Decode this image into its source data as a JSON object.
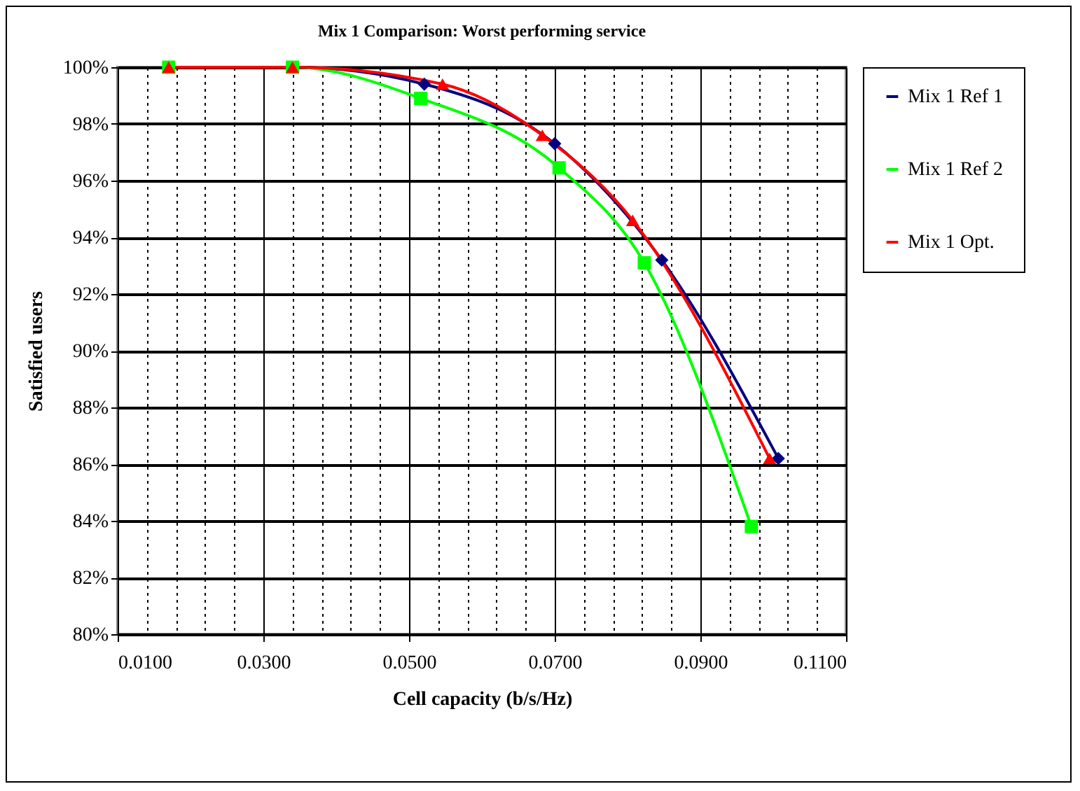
{
  "chart_data": {
    "type": "line",
    "title": "Mix 1 Comparison: Worst performing service",
    "xlabel": "Cell capacity (b/s/Hz)",
    "ylabel": "Satisfied users",
    "xlim": [
      0.01,
      0.11
    ],
    "ylim": [
      80,
      100
    ],
    "xticks": [
      {
        "value": 0.01,
        "label": "0.0100"
      },
      {
        "value": 0.014,
        "label": null
      },
      {
        "value": 0.018,
        "label": null
      },
      {
        "value": 0.022,
        "label": null
      },
      {
        "value": 0.026,
        "label": null
      },
      {
        "value": 0.03,
        "label": "0.0300"
      },
      {
        "value": 0.034,
        "label": null
      },
      {
        "value": 0.038,
        "label": null
      },
      {
        "value": 0.042,
        "label": null
      },
      {
        "value": 0.046,
        "label": null
      },
      {
        "value": 0.05,
        "label": "0.0500"
      },
      {
        "value": 0.054,
        "label": null
      },
      {
        "value": 0.058,
        "label": null
      },
      {
        "value": 0.062,
        "label": null
      },
      {
        "value": 0.066,
        "label": null
      },
      {
        "value": 0.07,
        "label": "0.0700"
      },
      {
        "value": 0.074,
        "label": null
      },
      {
        "value": 0.078,
        "label": null
      },
      {
        "value": 0.082,
        "label": null
      },
      {
        "value": 0.086,
        "label": null
      },
      {
        "value": 0.09,
        "label": "0.0900"
      },
      {
        "value": 0.094,
        "label": null
      },
      {
        "value": 0.098,
        "label": null
      },
      {
        "value": 0.102,
        "label": null
      },
      {
        "value": 0.106,
        "label": null
      },
      {
        "value": 0.11,
        "label": "0.1100"
      }
    ],
    "yticks": [
      {
        "value": 80,
        "label": "80%"
      },
      {
        "value": 82,
        "label": "82%"
      },
      {
        "value": 84,
        "label": "84%"
      },
      {
        "value": 86,
        "label": "86%"
      },
      {
        "value": 88,
        "label": "88%"
      },
      {
        "value": 90,
        "label": "90%"
      },
      {
        "value": 92,
        "label": "92%"
      },
      {
        "value": 94,
        "label": "94%"
      },
      {
        "value": 96,
        "label": "96%"
      },
      {
        "value": 98,
        "label": "98%"
      },
      {
        "value": 100,
        "label": "100%"
      }
    ],
    "grid": true,
    "legend": "right",
    "series": [
      {
        "name": "Mix 1 Ref 1",
        "color": "#000080",
        "marker": "diamond",
        "x": [
          0.017,
          0.034,
          0.0521,
          0.07,
          0.0847,
          0.1007
        ],
        "values": [
          100,
          100,
          99.4,
          97.3,
          93.2,
          86.2
        ]
      },
      {
        "name": "Mix 1 Ref 2",
        "color": "#00ff00",
        "marker": "square",
        "x": [
          0.017,
          0.034,
          0.0516,
          0.0706,
          0.0823,
          0.097
        ],
        "values": [
          100,
          100,
          98.9,
          96.45,
          93.1,
          83.8
        ]
      },
      {
        "name": "Mix 1 Opt.",
        "color": "#ff0000",
        "marker": "triangle",
        "x": [
          0.017,
          0.034,
          0.0546,
          0.0683,
          0.0807,
          0.0995
        ],
        "values": [
          100,
          100,
          99.4,
          97.6,
          94.6,
          86.2
        ]
      }
    ]
  }
}
